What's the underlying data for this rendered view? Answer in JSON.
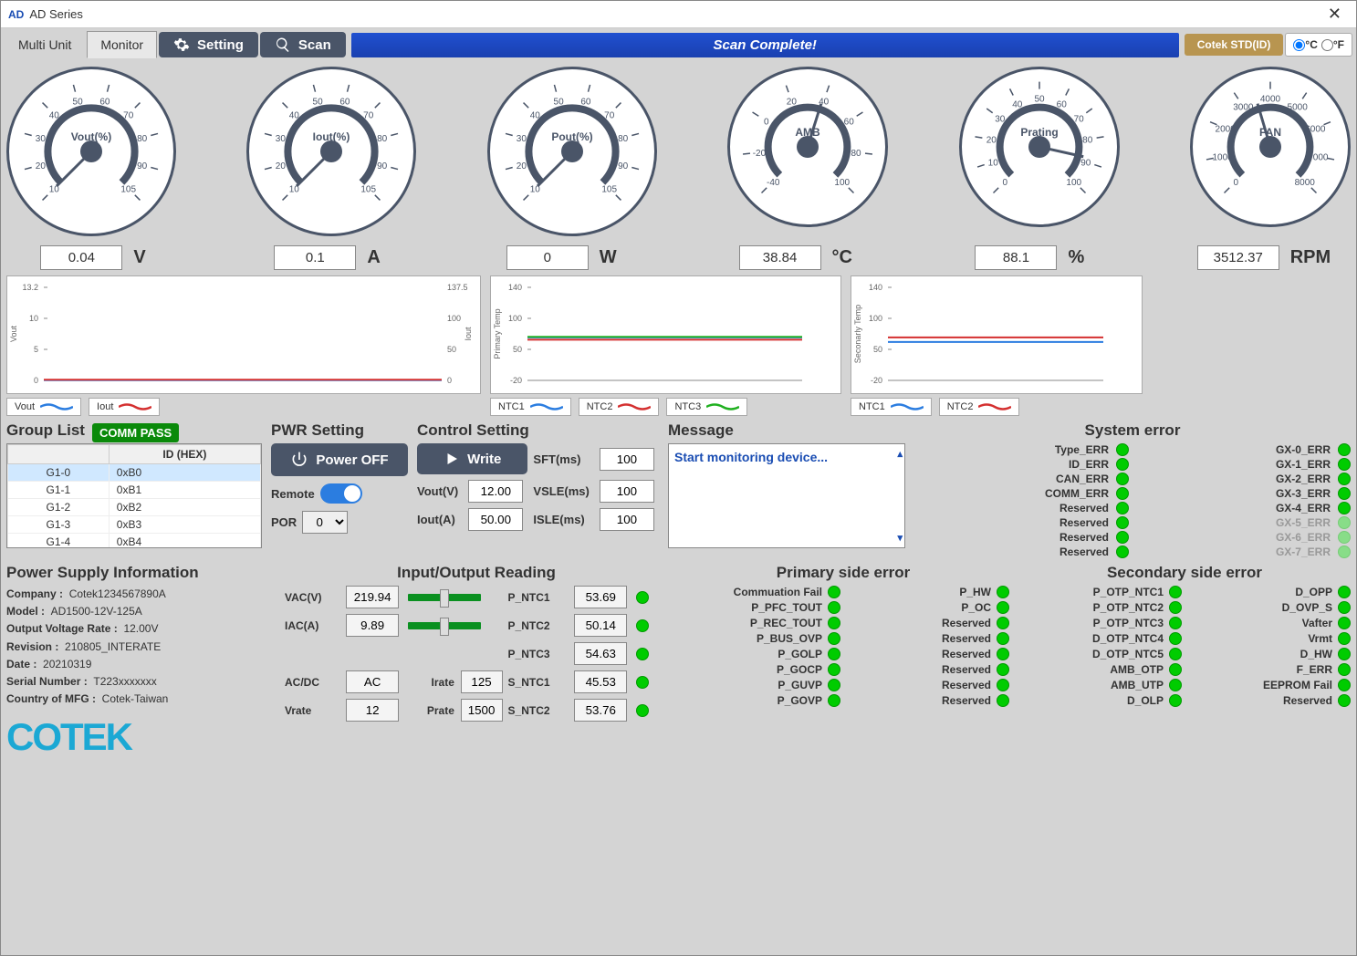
{
  "window": {
    "logo": "AD",
    "title": "AD Series"
  },
  "tabs": {
    "multi": "Multi Unit",
    "monitor": "Monitor"
  },
  "toolbar": {
    "setting": "Setting",
    "scan": "Scan",
    "scanbar": "Scan Complete!",
    "cotek": "Cotek STD(ID)",
    "celsius": "°C",
    "fahrenheit": "°F"
  },
  "gauges": [
    {
      "label": "Vout(%)",
      "value": "0.04",
      "unit": "V",
      "ticks": [
        "10",
        "20",
        "30",
        "40",
        "50",
        "60",
        "70",
        "80",
        "90",
        "105"
      ],
      "min": 0,
      "max": 105,
      "needle": 0
    },
    {
      "label": "Iout(%)",
      "value": "0.1",
      "unit": "A",
      "ticks": [
        "10",
        "20",
        "30",
        "40",
        "50",
        "60",
        "70",
        "80",
        "90",
        "105"
      ],
      "min": 0,
      "max": 105,
      "needle": 0
    },
    {
      "label": "Pout(%)",
      "value": "0",
      "unit": "W",
      "ticks": [
        "10",
        "20",
        "30",
        "40",
        "50",
        "60",
        "70",
        "80",
        "90",
        "105"
      ],
      "min": 0,
      "max": 105,
      "needle": 0
    },
    {
      "label": "AMB",
      "value": "38.84",
      "unit": "°C",
      "ticks": [
        "-40",
        "-20",
        "0",
        "20",
        "40",
        "60",
        "80",
        "100"
      ],
      "min": -40,
      "max": 100,
      "needle": 39
    },
    {
      "label": "Prating",
      "value": "88.1",
      "unit": "%",
      "ticks": [
        "0",
        "10",
        "20",
        "30",
        "40",
        "50",
        "60",
        "70",
        "80",
        "90",
        "100"
      ],
      "min": 0,
      "max": 100,
      "needle": 88
    },
    {
      "label": "FAN",
      "value": "3512.37",
      "unit": "RPM",
      "ticks": [
        "0",
        "1000",
        "2000",
        "3000",
        "4000",
        "5000",
        "6000",
        "7000",
        "8000"
      ],
      "min": 0,
      "max": 8000,
      "needle": 3512
    }
  ],
  "chart1": {
    "y_left": "Vout",
    "y_right": "Iout",
    "left_ticks": [
      "13.2",
      "10",
      "5",
      "0"
    ],
    "right_ticks": [
      "137.5",
      "100",
      "50",
      "0"
    ],
    "legend": [
      {
        "label": "Vout",
        "color": "#2b7de0"
      },
      {
        "label": "Iout",
        "color": "#d43030"
      }
    ],
    "series": {
      "vout": 0.04,
      "iout": 0.1
    }
  },
  "chart2": {
    "y_label": "Primary Temp",
    "ticks": [
      "140",
      "100",
      "50",
      "-20"
    ],
    "legend": [
      {
        "label": "NTC1",
        "color": "#2b7de0"
      },
      {
        "label": "NTC2",
        "color": "#d43030"
      },
      {
        "label": "NTC3",
        "color": "#20b020"
      }
    ],
    "series": {
      "ntc1": 54,
      "ntc2": 50,
      "ntc3": 55
    }
  },
  "chart3": {
    "y_label": "Seconarly Temp",
    "ticks": [
      "140",
      "100",
      "50",
      "-20"
    ],
    "legend": [
      {
        "label": "NTC1",
        "color": "#2b7de0"
      },
      {
        "label": "NTC2",
        "color": "#d43030"
      }
    ],
    "series": {
      "ntc1": 46,
      "ntc2": 54
    }
  },
  "group_list": {
    "title": "Group List",
    "badge": "COMM PASS",
    "cols": [
      "",
      "ID (HEX)"
    ],
    "rows": [
      [
        "G1-0",
        "0xB0"
      ],
      [
        "G1-1",
        "0xB1"
      ],
      [
        "G1-2",
        "0xB2"
      ],
      [
        "G1-3",
        "0xB3"
      ],
      [
        "G1-4",
        "0xB4"
      ]
    ],
    "selected": 0
  },
  "pwr": {
    "title": "PWR Setting",
    "btn": "Power OFF",
    "remote": "Remote",
    "remote_on": true,
    "por": "POR",
    "por_val": "0"
  },
  "ctrl": {
    "title": "Control Setting",
    "write": "Write",
    "vout": "Vout(V)",
    "vout_val": "12.00",
    "iout": "Iout(A)",
    "iout_val": "50.00",
    "sft": "SFT(ms)",
    "sft_val": "100",
    "vsle": "VSLE(ms)",
    "vsle_val": "100",
    "isle": "ISLE(ms)",
    "isle_val": "100"
  },
  "msg": {
    "title": "Message",
    "text": "Start monitoring device..."
  },
  "sys_err": {
    "title": "System error",
    "left": [
      "Type_ERR",
      "ID_ERR",
      "CAN_ERR",
      "COMM_ERR",
      "Reserved",
      "Reserved",
      "Reserved",
      "Reserved"
    ],
    "right": [
      "GX-0_ERR",
      "GX-1_ERR",
      "GX-2_ERR",
      "GX-3_ERR",
      "GX-4_ERR",
      "GX-5_ERR",
      "GX-6_ERR",
      "GX-7_ERR"
    ],
    "right_dim": [
      false,
      false,
      false,
      false,
      false,
      true,
      true,
      true
    ]
  },
  "psi": {
    "title": "Power Supply Information",
    "company_l": "Company :",
    "company": "Cotek1234567890A",
    "model_l": "Model :",
    "model": "AD1500-12V-125A",
    "ovr_l": "Output Voltage Rate :",
    "ovr": "12.00V",
    "rev_l": "Revision :",
    "rev": "210805_INTERATE",
    "date_l": "Date :",
    "date": "20210319",
    "sn_l": "Serial Number :",
    "sn": "T223xxxxxxx",
    "mfg_l": "Country of MFG :",
    "mfg": "Cotek-Taiwan",
    "logo": "COTEK"
  },
  "io": {
    "title": "Input/Output Reading",
    "vac": "VAC(V)",
    "vac_val": "219.94",
    "iac": "IAC(A)",
    "iac_val": "9.89",
    "acdc": "AC/DC",
    "acdc_val": "AC",
    "vrate": "Vrate",
    "vrate_val": "12",
    "irate": "Irate",
    "irate_val": "125",
    "prate": "Prate",
    "prate_val": "1500",
    "ntc1": "P_NTC1",
    "ntc1_val": "53.69",
    "ntc2": "P_NTC2",
    "ntc2_val": "50.14",
    "ntc3": "P_NTC3",
    "ntc3_val": "54.63",
    "sntc1": "S_NTC1",
    "sntc1_val": "45.53",
    "sntc2": "S_NTC2",
    "sntc2_val": "53.76"
  },
  "pri_err": {
    "title": "Primary side error",
    "left": [
      "Commuation Fail",
      "P_PFC_TOUT",
      "P_REC_TOUT",
      "P_BUS_OVP",
      "P_GOLP",
      "P_GOCP",
      "P_GUVP",
      "P_GOVP"
    ],
    "right": [
      "P_HW",
      "P_OC",
      "Reserved",
      "Reserved",
      "Reserved",
      "Reserved",
      "Reserved",
      "Reserved"
    ]
  },
  "sec_err": {
    "title": "Secondary side error",
    "left": [
      "P_OTP_NTC1",
      "P_OTP_NTC2",
      "P_OTP_NTC3",
      "D_OTP_NTC4",
      "D_OTP_NTC5",
      "AMB_OTP",
      "AMB_UTP",
      "D_OLP"
    ],
    "right": [
      "D_OPP",
      "D_OVP_S",
      "Vafter",
      "Vrmt",
      "D_HW",
      "F_ERR",
      "EEPROM Fail",
      "Reserved"
    ]
  },
  "colors": {
    "accent": "#4a5568",
    "blue": "#2b7de0",
    "green": "#0c0"
  }
}
